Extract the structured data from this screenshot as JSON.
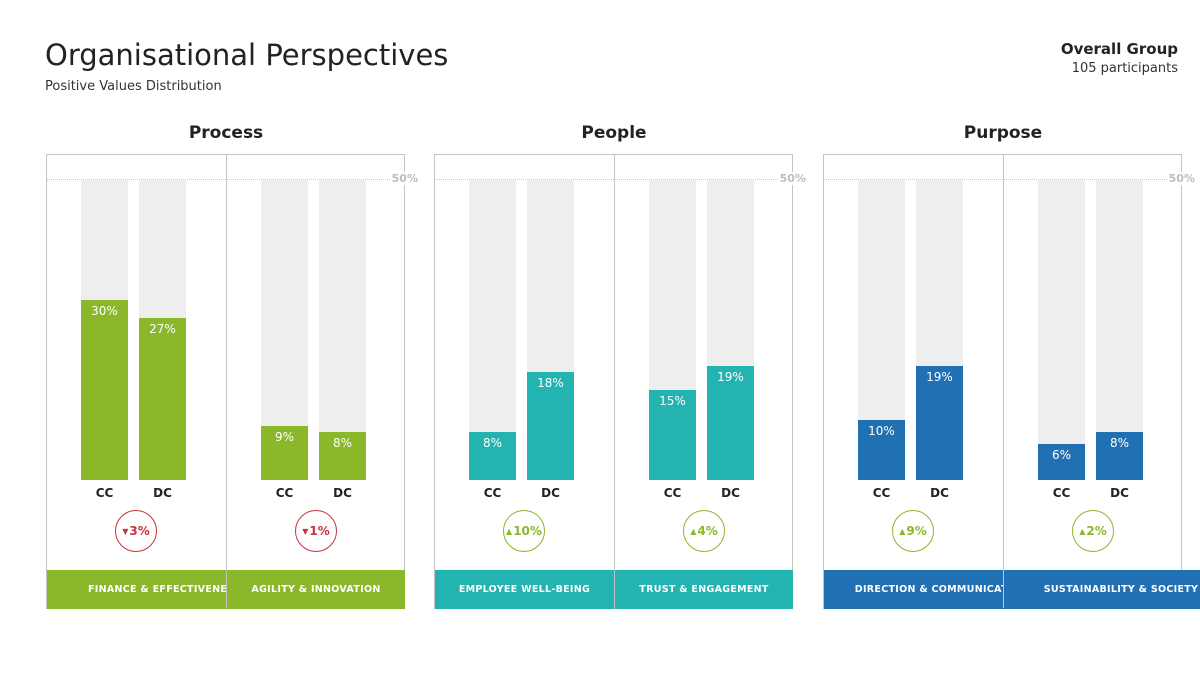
{
  "header": {
    "title": "Organisational Perspectives",
    "subtitle": "Positive Values Distribution",
    "group_name": "Overall Group",
    "participants": "105 participants"
  },
  "colors": {
    "process": "#8bb72a",
    "people": "#23b3b0",
    "purpose": "#2270b4",
    "down": "#c8323c",
    "up": "#8bb72a",
    "track": "#eeeeee"
  },
  "chart_data": {
    "type": "bar",
    "title": "Organisational Perspectives",
    "subtitle": "Positive Values Distribution",
    "ylim": [
      0,
      50
    ],
    "reference_line": {
      "value": 50,
      "label": "50%"
    },
    "series_labels": [
      "CC",
      "DC"
    ],
    "groups": [
      {
        "name": "Process",
        "color_key": "process",
        "categories": [
          {
            "name": "FINANCE & EFFECTIVENESS",
            "cc": 30,
            "dc": 27,
            "cc_label": "30%",
            "dc_label": "27%",
            "change": "3%",
            "direction": "down"
          },
          {
            "name": "AGILITY & INNOVATION",
            "cc": 9,
            "dc": 8,
            "cc_label": "9%",
            "dc_label": "8%",
            "change": "1%",
            "direction": "down"
          }
        ]
      },
      {
        "name": "People",
        "color_key": "people",
        "categories": [
          {
            "name": "EMPLOYEE WELL-BEING",
            "cc": 8,
            "dc": 18,
            "cc_label": "8%",
            "dc_label": "18%",
            "change": "10%",
            "direction": "up"
          },
          {
            "name": "TRUST & ENGAGEMENT",
            "cc": 15,
            "dc": 19,
            "cc_label": "15%",
            "dc_label": "19%",
            "change": "4%",
            "direction": "up"
          }
        ]
      },
      {
        "name": "Purpose",
        "color_key": "purpose",
        "categories": [
          {
            "name": "DIRECTION & COMMUNICATION",
            "cc": 10,
            "dc": 19,
            "cc_label": "10%",
            "dc_label": "19%",
            "change": "9%",
            "direction": "up"
          },
          {
            "name": "SUSTAINABILITY & SOCIETY",
            "cc": 6,
            "dc": 8,
            "cc_label": "6%",
            "dc_label": "8%",
            "change": "2%",
            "direction": "up"
          }
        ]
      }
    ]
  },
  "icons": {
    "down": "triangle-down-icon",
    "up": "triangle-up-icon"
  }
}
